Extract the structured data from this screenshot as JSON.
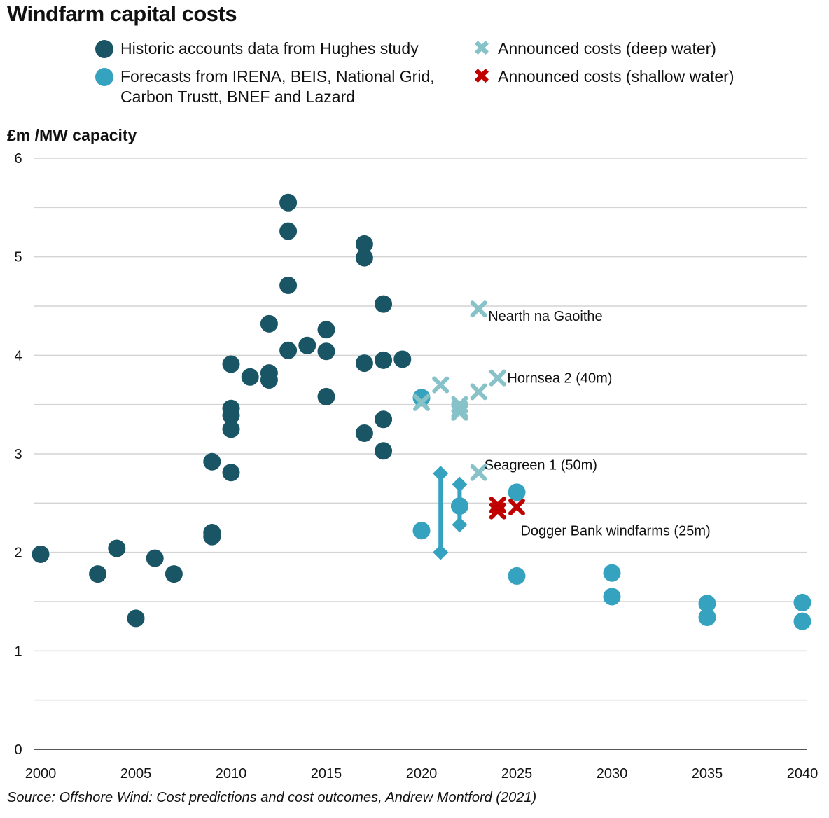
{
  "title": "Windfarm capital costs",
  "ylabel": "£m /MW capacity",
  "source": "Source: Offshore Wind: Cost predictions and cost outcomes, Andrew Montford (2021)",
  "colors": {
    "historic": "#1a5566",
    "forecast": "#35a3bf",
    "deep": "#88c2c9",
    "shallow": "#c00000",
    "grid": "#d4d4d4",
    "axis": "#555555"
  },
  "legend": [
    {
      "label": "Historic accounts data from Hughes study",
      "marker": "circle",
      "color": "#1a5566"
    },
    {
      "label": "Forecasts from IRENA, BEIS, National Grid,\nCarbon Trustt, BNEF and Lazard",
      "marker": "circle",
      "color": "#35a3bf"
    },
    {
      "label": "Announced costs (deep water)",
      "marker": "x",
      "color": "#88c2c9"
    },
    {
      "label": "Announced costs (shallow water)",
      "marker": "x",
      "color": "#c00000"
    }
  ],
  "chart_data": {
    "type": "scatter",
    "xlim": [
      2000,
      2040
    ],
    "ylim": [
      0,
      6
    ],
    "xticks": [
      2000,
      2005,
      2010,
      2015,
      2020,
      2025,
      2030,
      2035,
      2040
    ],
    "yticks": [
      0,
      1,
      2,
      3,
      4,
      5,
      6
    ],
    "grid_step": 0.5,
    "grid": true,
    "series": [
      {
        "name": "Historic accounts data from Hughes study",
        "marker": "circle",
        "color": "#1a5566",
        "points": [
          [
            2000,
            1.98
          ],
          [
            2003,
            1.78
          ],
          [
            2004,
            2.04
          ],
          [
            2005,
            1.33
          ],
          [
            2006,
            1.94
          ],
          [
            2007,
            1.78
          ],
          [
            2009,
            2.92
          ],
          [
            2009,
            2.2
          ],
          [
            2009,
            2.16
          ],
          [
            2010,
            3.91
          ],
          [
            2010,
            3.46
          ],
          [
            2010,
            3.39
          ],
          [
            2010,
            3.25
          ],
          [
            2010,
            2.81
          ],
          [
            2011,
            3.78
          ],
          [
            2012,
            4.32
          ],
          [
            2012,
            3.82
          ],
          [
            2012,
            3.75
          ],
          [
            2013,
            5.55
          ],
          [
            2013,
            5.26
          ],
          [
            2013,
            4.71
          ],
          [
            2013,
            4.05
          ],
          [
            2014,
            4.1
          ],
          [
            2015,
            4.26
          ],
          [
            2015,
            4.04
          ],
          [
            2015,
            3.58
          ],
          [
            2017,
            5.13
          ],
          [
            2017,
            4.99
          ],
          [
            2017,
            3.92
          ],
          [
            2017,
            3.21
          ],
          [
            2018,
            4.52
          ],
          [
            2018,
            3.95
          ],
          [
            2018,
            3.35
          ],
          [
            2018,
            3.03
          ],
          [
            2019,
            3.96
          ]
        ]
      },
      {
        "name": "Forecasts from IRENA, BEIS, National Grid, Carbon Trustt, BNEF and Lazard",
        "marker": "circle",
        "color": "#35a3bf",
        "points": [
          [
            2020,
            3.57
          ],
          [
            2020,
            2.22
          ],
          [
            2022,
            2.47
          ],
          [
            2025,
            2.61
          ],
          [
            2025,
            1.76
          ],
          [
            2030,
            1.79
          ],
          [
            2030,
            1.55
          ],
          [
            2035,
            1.48
          ],
          [
            2035,
            1.34
          ],
          [
            2040,
            1.49
          ],
          [
            2040,
            1.3
          ]
        ]
      },
      {
        "name": "Announced costs (deep water)",
        "marker": "x",
        "color": "#88c2c9",
        "points": [
          [
            2020,
            3.52
          ],
          [
            2021,
            3.7
          ],
          [
            2022,
            3.5
          ],
          [
            2022,
            3.45
          ],
          [
            2022,
            3.42
          ],
          [
            2023,
            3.63
          ],
          [
            2023,
            4.47
          ],
          [
            2024,
            3.77
          ],
          [
            2023,
            2.81
          ]
        ]
      },
      {
        "name": "Announced costs (shallow water)",
        "marker": "x",
        "color": "#c00000",
        "points": [
          [
            2024,
            2.48
          ],
          [
            2024,
            2.42
          ],
          [
            2025,
            2.46
          ]
        ]
      }
    ],
    "ranges": [
      {
        "x": 2021,
        "low": 2.0,
        "high": 2.8,
        "color": "#35a3bf"
      },
      {
        "x": 2022,
        "low": 2.28,
        "high": 2.69,
        "color": "#35a3bf"
      }
    ],
    "annotations": [
      {
        "text": "Nearth na Gaoithe",
        "x": 2023.5,
        "y": 4.4
      },
      {
        "text": "Hornsea 2 (40m)",
        "x": 2024.5,
        "y": 3.77
      },
      {
        "text": "Seagreen 1 (50m)",
        "x": 2023.3,
        "y": 2.89
      },
      {
        "text": "Dogger Bank windfarms (25m)",
        "x": 2025.2,
        "y": 2.22
      }
    ]
  }
}
